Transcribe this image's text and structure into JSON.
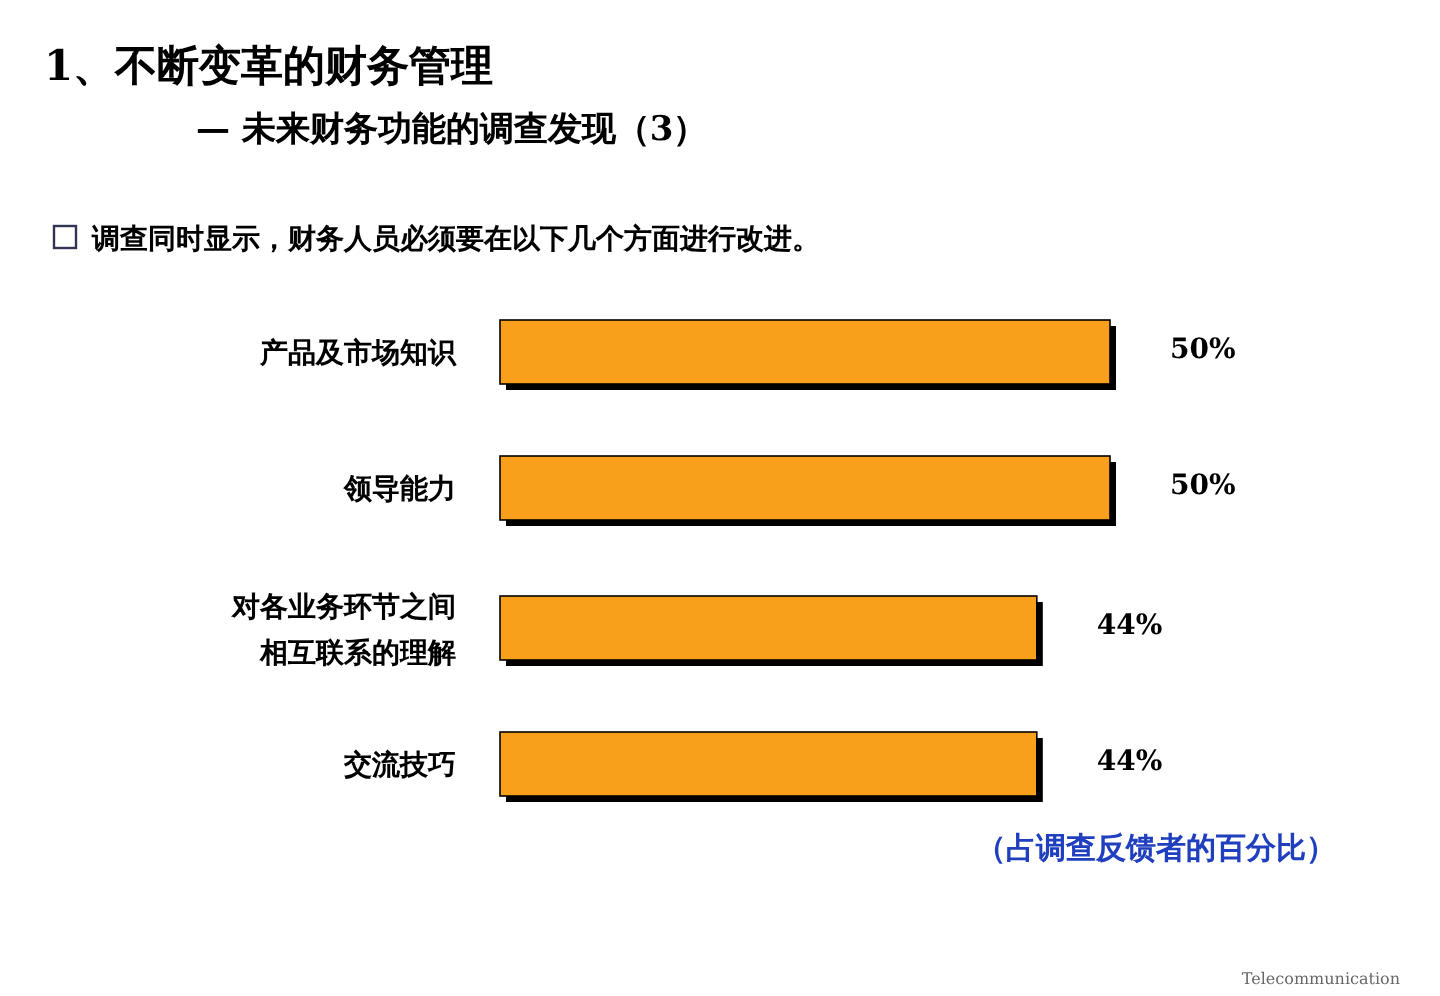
{
  "chart_data": {
    "type": "bar",
    "orientation": "horizontal",
    "title": "1、不断变革的财务管理",
    "subtitle": "— 未来财务功能的调查发现（3）",
    "categories": [
      "产品及市场知识",
      "领导能力",
      "对各业务环节之间相互联系的理解",
      "交流技巧"
    ],
    "values": [
      50,
      50,
      44,
      44
    ],
    "value_labels": [
      "50%",
      "50%",
      "44%",
      "44%"
    ],
    "color": "#f8a01c",
    "annotations": [
      "调查同时显示，财务人员必须要在以下几个方面进行改进。",
      "（占调查反馈者的百分比）",
      "Telecommunication"
    ]
  }
}
